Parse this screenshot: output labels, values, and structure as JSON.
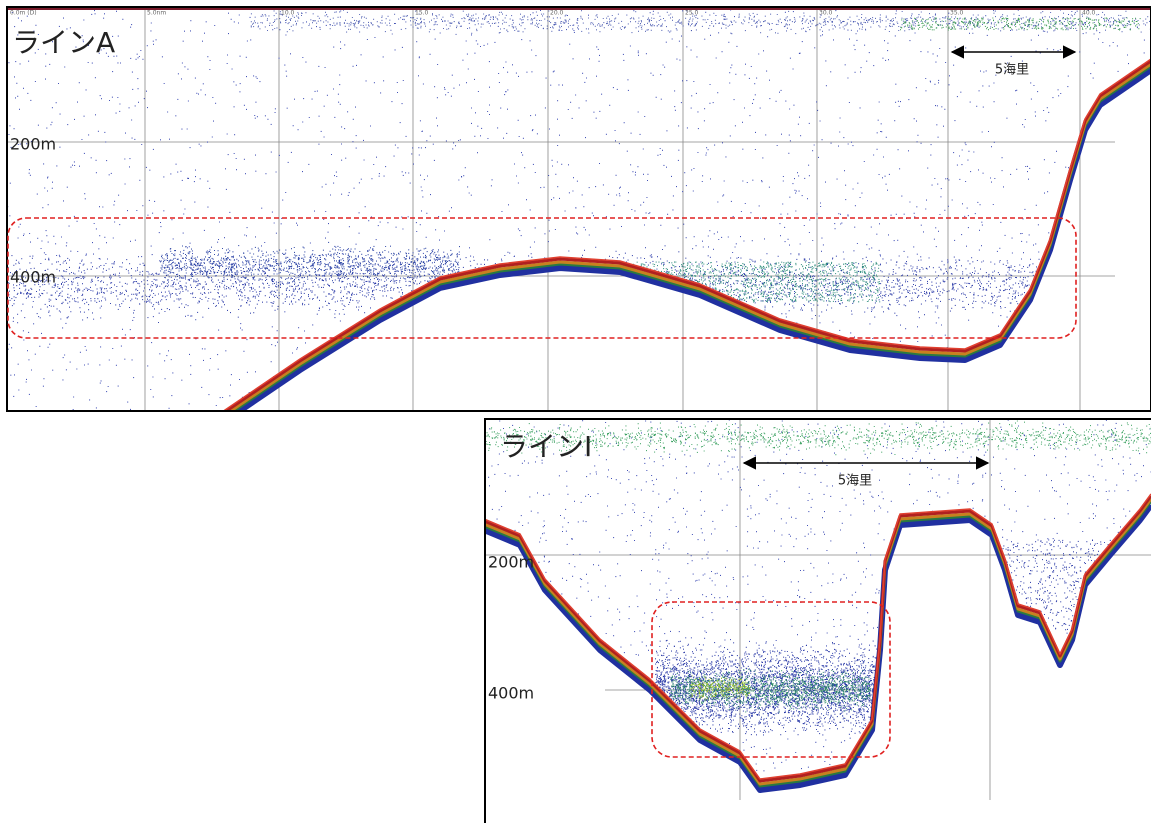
{
  "panels": [
    {
      "label": "ラインA",
      "depth_labels": [
        "200m",
        "400m"
      ],
      "distance_label": "5海里",
      "scale_labels": [
        "0.0m (D)",
        "5.0nm",
        "10.0",
        "15.0",
        "20.0",
        "25.0",
        "30.0",
        "35.0",
        "40.0"
      ]
    },
    {
      "label": "ラインI",
      "depth_labels": [
        "200m",
        "400m"
      ],
      "distance_label": "5海里"
    }
  ]
}
